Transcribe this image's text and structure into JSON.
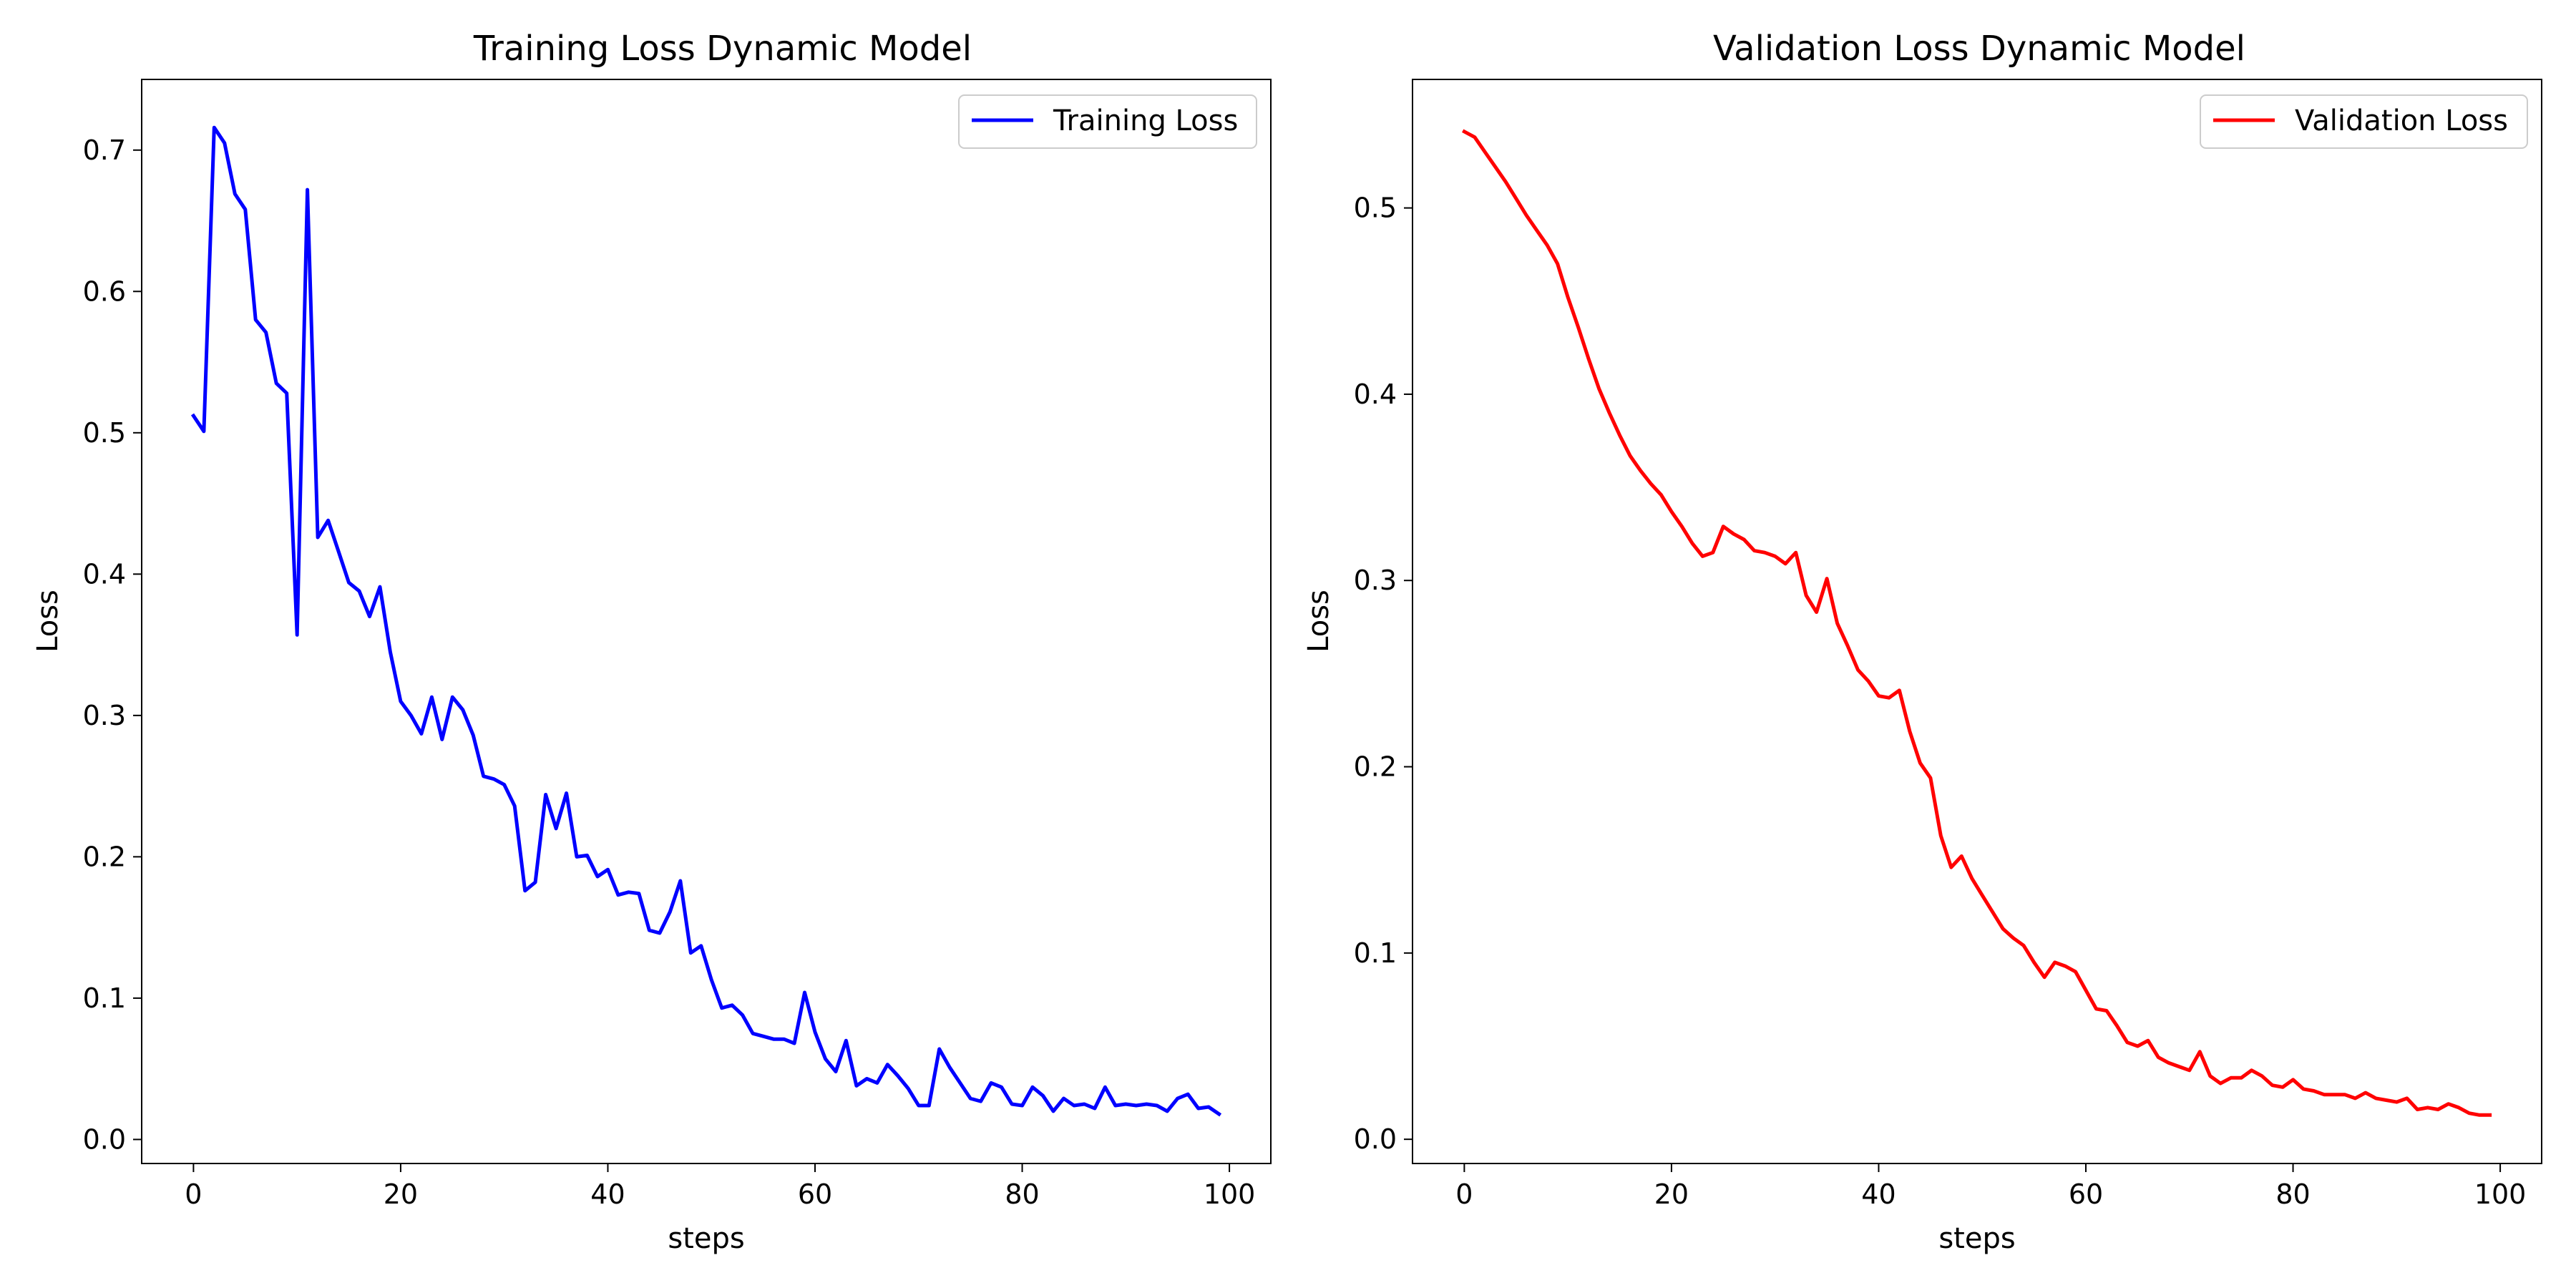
{
  "chart_data": [
    {
      "type": "line",
      "title": "Training Loss Dynamic Model",
      "xlabel": "steps",
      "ylabel": "Loss",
      "xlim": [
        -5,
        104
      ],
      "ylim": [
        -0.017,
        0.75
      ],
      "xticks": [
        0,
        20,
        40,
        60,
        80,
        100
      ],
      "xtick_labels": [
        "0",
        "20",
        "40",
        "60",
        "80",
        "100"
      ],
      "yticks": [
        0.0,
        0.1,
        0.2,
        0.3,
        0.4,
        0.5,
        0.6,
        0.7
      ],
      "ytick_labels": [
        "0.0",
        "0.1",
        "0.2",
        "0.3",
        "0.4",
        "0.5",
        "0.6",
        "0.7"
      ],
      "grid": false,
      "legend_position": "top-right",
      "series": [
        {
          "name": "Training Loss",
          "color": "#0000ff",
          "x": [
            0,
            1,
            2,
            3,
            4,
            5,
            6,
            7,
            8,
            9,
            10,
            11,
            12,
            13,
            14,
            15,
            16,
            17,
            18,
            19,
            20,
            21,
            22,
            23,
            24,
            25,
            26,
            27,
            28,
            29,
            30,
            31,
            32,
            33,
            34,
            35,
            36,
            37,
            38,
            39,
            40,
            41,
            42,
            43,
            44,
            45,
            46,
            47,
            48,
            49,
            50,
            51,
            52,
            53,
            54,
            55,
            56,
            57,
            58,
            59,
            60,
            61,
            62,
            63,
            64,
            65,
            66,
            67,
            68,
            69,
            70,
            71,
            72,
            73,
            74,
            75,
            76,
            77,
            78,
            79,
            80,
            81,
            82,
            83,
            84,
            85,
            86,
            87,
            88,
            89,
            90,
            91,
            92,
            93,
            94,
            95,
            96,
            97,
            98,
            99
          ],
          "y": [
            0.512,
            0.501,
            0.716,
            0.705,
            0.669,
            0.658,
            0.58,
            0.571,
            0.535,
            0.528,
            0.357,
            0.672,
            0.426,
            0.438,
            0.416,
            0.394,
            0.388,
            0.37,
            0.391,
            0.345,
            0.31,
            0.3,
            0.287,
            0.313,
            0.283,
            0.313,
            0.304,
            0.286,
            0.257,
            0.255,
            0.251,
            0.236,
            0.176,
            0.182,
            0.244,
            0.22,
            0.245,
            0.2,
            0.201,
            0.186,
            0.191,
            0.173,
            0.175,
            0.174,
            0.148,
            0.146,
            0.161,
            0.183,
            0.132,
            0.137,
            0.113,
            0.093,
            0.095,
            0.088,
            0.075,
            0.073,
            0.071,
            0.071,
            0.068,
            0.104,
            0.076,
            0.057,
            0.048,
            0.07,
            0.038,
            0.043,
            0.04,
            0.053,
            0.045,
            0.036,
            0.024,
            0.024,
            0.064,
            0.051,
            0.04,
            0.029,
            0.027,
            0.04,
            0.037,
            0.025,
            0.024,
            0.037,
            0.031,
            0.02,
            0.029,
            0.024,
            0.025,
            0.022,
            0.037,
            0.024,
            0.025,
            0.024,
            0.025,
            0.024,
            0.02,
            0.029,
            0.032,
            0.022,
            0.023,
            0.018
          ]
        }
      ]
    },
    {
      "type": "line",
      "title": "Validation Loss Dynamic Model",
      "xlabel": "steps",
      "ylabel": "Loss",
      "xlim": [
        -5,
        104
      ],
      "ylim": [
        -0.013,
        0.569
      ],
      "xticks": [
        0,
        20,
        40,
        60,
        80,
        100
      ],
      "xtick_labels": [
        "0",
        "20",
        "40",
        "60",
        "80",
        "100"
      ],
      "yticks": [
        0.0,
        0.1,
        0.2,
        0.3,
        0.4,
        0.5
      ],
      "ytick_labels": [
        "0.0",
        "0.1",
        "0.2",
        "0.3",
        "0.4",
        "0.5"
      ],
      "grid": false,
      "legend_position": "top-right",
      "series": [
        {
          "name": "Validation Loss",
          "color": "#ff0000",
          "x": [
            0,
            1,
            2,
            3,
            4,
            5,
            6,
            7,
            8,
            9,
            10,
            11,
            12,
            13,
            14,
            15,
            16,
            17,
            18,
            19,
            20,
            21,
            22,
            23,
            24,
            25,
            26,
            27,
            28,
            29,
            30,
            31,
            32,
            33,
            34,
            35,
            36,
            37,
            38,
            39,
            40,
            41,
            42,
            43,
            44,
            45,
            46,
            47,
            48,
            49,
            50,
            51,
            52,
            53,
            54,
            55,
            56,
            57,
            58,
            59,
            60,
            61,
            62,
            63,
            64,
            65,
            66,
            67,
            68,
            69,
            70,
            71,
            72,
            73,
            74,
            75,
            76,
            77,
            78,
            79,
            80,
            81,
            82,
            83,
            84,
            85,
            86,
            87,
            88,
            89,
            90,
            91,
            92,
            93,
            94,
            95,
            96,
            97,
            98,
            99
          ],
          "y": [
            0.541,
            0.538,
            0.53,
            0.522,
            0.514,
            0.505,
            0.496,
            0.488,
            0.48,
            0.47,
            0.452,
            0.436,
            0.419,
            0.403,
            0.39,
            0.378,
            0.367,
            0.359,
            0.352,
            0.346,
            0.337,
            0.329,
            0.32,
            0.313,
            0.315,
            0.329,
            0.325,
            0.322,
            0.316,
            0.315,
            0.313,
            0.309,
            0.315,
            0.292,
            0.283,
            0.301,
            0.277,
            0.265,
            0.252,
            0.246,
            0.238,
            0.237,
            0.241,
            0.219,
            0.202,
            0.194,
            0.163,
            0.146,
            0.152,
            0.14,
            0.131,
            0.122,
            0.113,
            0.108,
            0.104,
            0.095,
            0.087,
            0.095,
            0.093,
            0.09,
            0.08,
            0.07,
            0.069,
            0.061,
            0.052,
            0.05,
            0.053,
            0.044,
            0.041,
            0.039,
            0.037,
            0.047,
            0.034,
            0.03,
            0.033,
            0.033,
            0.037,
            0.034,
            0.029,
            0.028,
            0.032,
            0.027,
            0.026,
            0.024,
            0.024,
            0.024,
            0.022,
            0.025,
            0.022,
            0.021,
            0.02,
            0.022,
            0.016,
            0.017,
            0.016,
            0.019,
            0.017,
            0.014,
            0.013,
            0.013
          ]
        }
      ]
    }
  ]
}
